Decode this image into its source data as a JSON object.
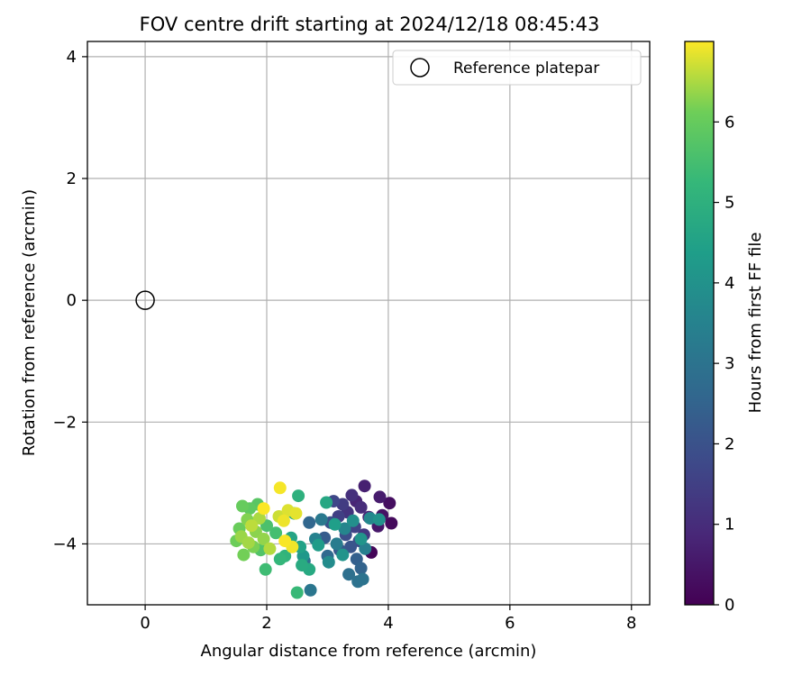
{
  "chart_data": {
    "type": "scatter",
    "title": "FOV centre drift starting at 2024/12/18 08:45:43",
    "xlabel": "Angular distance from reference (arcmin)",
    "ylabel": "Rotation from reference (arcmin)",
    "xlim": [
      -0.95,
      8.3
    ],
    "ylim": [
      -5.0,
      4.25
    ],
    "xticks": [
      "0",
      "2",
      "4",
      "6",
      "8"
    ],
    "xtick_values": [
      0,
      2,
      4,
      6,
      8
    ],
    "yticks": [
      "4",
      "2",
      "0",
      "−2",
      "−4"
    ],
    "ytick_values": [
      4,
      2,
      0,
      -2,
      -4
    ],
    "grid": true,
    "legend": {
      "position": "top-right",
      "entries": [
        "Reference platepar"
      ]
    },
    "reference_point": {
      "x": 0,
      "y": 0,
      "marker": "open-circle"
    },
    "colorbar": {
      "label": "Hours from first FF file",
      "range": [
        0,
        7.0
      ],
      "ticks": [
        "0",
        "1",
        "2",
        "3",
        "4",
        "5",
        "6"
      ],
      "tick_values": [
        0,
        1,
        2,
        3,
        4,
        5,
        6
      ],
      "colormap": "viridis"
    },
    "series": [
      {
        "columns": [
          "x",
          "y",
          "hours"
        ],
        "points": [
          [
            3.72,
            -4.14,
            0.1
          ],
          [
            4.05,
            -3.66,
            0.2
          ],
          [
            4.02,
            -3.33,
            0.3
          ],
          [
            3.9,
            -3.53,
            0.4
          ],
          [
            3.83,
            -3.71,
            0.5
          ],
          [
            3.86,
            -3.23,
            0.6
          ],
          [
            3.61,
            -3.05,
            0.7
          ],
          [
            3.47,
            -3.3,
            0.8
          ],
          [
            3.68,
            -3.56,
            0.9
          ],
          [
            3.55,
            -3.4,
            1.0
          ],
          [
            3.4,
            -3.2,
            1.1
          ],
          [
            3.33,
            -3.48,
            1.2
          ],
          [
            3.6,
            -3.85,
            1.3
          ],
          [
            3.25,
            -3.35,
            1.4
          ],
          [
            3.18,
            -3.55,
            1.5
          ],
          [
            3.45,
            -3.72,
            1.6
          ],
          [
            3.1,
            -3.3,
            1.7
          ],
          [
            3.52,
            -3.95,
            1.8
          ],
          [
            3.3,
            -3.85,
            1.9
          ],
          [
            3.05,
            -3.65,
            2.0
          ],
          [
            3.38,
            -4.05,
            2.1
          ],
          [
            3.2,
            -4.1,
            2.2
          ],
          [
            2.95,
            -3.9,
            2.3
          ],
          [
            3.48,
            -4.25,
            2.4
          ],
          [
            3.55,
            -4.4,
            2.5
          ],
          [
            2.7,
            -3.65,
            2.6
          ],
          [
            3.0,
            -4.2,
            2.7
          ],
          [
            2.62,
            -4.28,
            2.8
          ],
          [
            3.35,
            -4.5,
            2.9
          ],
          [
            3.5,
            -4.62,
            2.95
          ],
          [
            3.58,
            -4.58,
            3.0
          ],
          [
            2.72,
            -4.76,
            3.1
          ],
          [
            2.9,
            -3.6,
            3.2
          ],
          [
            3.15,
            -4.0,
            3.3
          ],
          [
            3.62,
            -4.08,
            3.4
          ],
          [
            2.8,
            -3.92,
            3.5
          ],
          [
            3.28,
            -3.75,
            3.6
          ],
          [
            3.7,
            -3.58,
            3.7
          ],
          [
            3.02,
            -4.3,
            3.8
          ],
          [
            3.42,
            -3.62,
            3.9
          ],
          [
            3.85,
            -3.6,
            4.0
          ],
          [
            3.25,
            -4.18,
            4.05
          ],
          [
            3.55,
            -3.92,
            4.1
          ],
          [
            2.6,
            -4.2,
            4.2
          ],
          [
            2.85,
            -4.02,
            4.3
          ],
          [
            3.12,
            -3.68,
            4.4
          ],
          [
            2.55,
            -4.05,
            4.5
          ],
          [
            2.4,
            -3.9,
            4.6
          ],
          [
            2.98,
            -3.32,
            4.7
          ],
          [
            2.7,
            -4.42,
            4.75
          ],
          [
            2.58,
            -4.35,
            4.8
          ],
          [
            2.45,
            -3.5,
            4.9
          ],
          [
            2.52,
            -3.21,
            5.0
          ],
          [
            2.3,
            -4.2,
            5.1
          ],
          [
            2.22,
            -4.25,
            5.2
          ],
          [
            2.5,
            -4.8,
            5.3
          ],
          [
            1.98,
            -4.42,
            5.4
          ],
          [
            2.15,
            -3.82,
            5.5
          ],
          [
            2.0,
            -3.7,
            5.6
          ],
          [
            1.9,
            -4.1,
            5.7
          ],
          [
            1.85,
            -3.35,
            5.8
          ],
          [
            1.72,
            -3.42,
            5.9
          ],
          [
            1.6,
            -3.38,
            6.0
          ],
          [
            1.55,
            -3.75,
            6.05
          ],
          [
            1.5,
            -3.95,
            6.1
          ],
          [
            1.62,
            -4.18,
            6.15
          ],
          [
            1.78,
            -4.05,
            6.2
          ],
          [
            1.68,
            -3.6,
            6.25
          ],
          [
            1.82,
            -3.8,
            6.3
          ],
          [
            1.95,
            -3.92,
            6.35
          ],
          [
            1.58,
            -3.88,
            6.4
          ],
          [
            1.7,
            -3.98,
            6.45
          ],
          [
            1.88,
            -3.58,
            6.5
          ],
          [
            2.05,
            -4.08,
            6.55
          ],
          [
            1.75,
            -3.7,
            6.6
          ],
          [
            2.2,
            -3.55,
            6.7
          ],
          [
            2.35,
            -3.45,
            6.8
          ],
          [
            2.48,
            -3.5,
            6.85
          ],
          [
            2.28,
            -3.62,
            6.9
          ],
          [
            2.42,
            -4.05,
            6.92
          ],
          [
            2.22,
            -3.08,
            6.95
          ],
          [
            2.3,
            -3.95,
            6.97
          ],
          [
            1.95,
            -3.42,
            6.99
          ]
        ]
      }
    ]
  }
}
